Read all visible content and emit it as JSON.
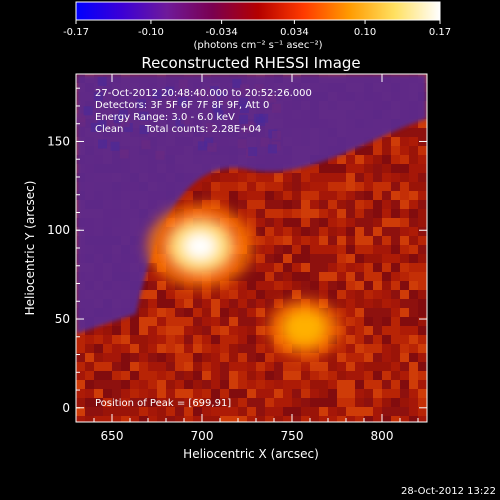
{
  "chart_data": {
    "type": "heatmap",
    "title": "Reconstructed RHESSI Image",
    "xlabel": "Heliocentric X (arcsec)",
    "ylabel": "Heliocentric Y (arcsec)",
    "xlim": [
      630,
      825
    ],
    "ylim": [
      -8,
      188
    ],
    "x_ticks": [
      650,
      700,
      750,
      800
    ],
    "y_ticks": [
      0,
      50,
      100,
      150
    ],
    "colorbar": {
      "range": [
        -0.17,
        0.17
      ],
      "tick_values": [
        -0.17,
        -0.1,
        -0.034,
        0.034,
        0.1,
        0.17
      ],
      "tick_labels": [
        "-0.17",
        "-0.10",
        "-0.034",
        "0.034",
        "0.10",
        "0.17"
      ],
      "units_label": "(photons cm⁻² s⁻¹ asec⁻²)",
      "colormap": [
        "#0000ff",
        "#3b00d6",
        "#6f1a9a",
        "#7a0050",
        "#b40000",
        "#ff3a00",
        "#ff9a00",
        "#ffe060",
        "#ffffff"
      ]
    },
    "annotations": {
      "time_range": "27-Oct-2012 20:48:40.000 to 20:52:26.000",
      "detectors": "Detectors: 3F 5F 6F 7F 8F 9F, Att 0",
      "energy_range": "Energy Range: 3.0 - 6.0 keV",
      "method": "Clean",
      "total_counts": "Total counts: 2.28E+04",
      "peak_position": "Position of Peak = [699,91]"
    },
    "sources": [
      {
        "x": 699,
        "y": 91,
        "relative_intensity": 1.0
      },
      {
        "x": 757,
        "y": 45,
        "relative_intensity": 0.6
      }
    ]
  },
  "timestamp": "28-Oct-2012 13:22"
}
